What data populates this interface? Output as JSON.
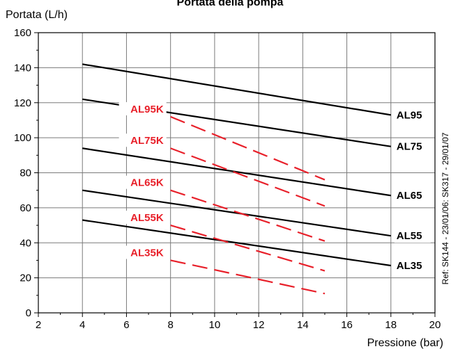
{
  "chart_data": {
    "type": "line",
    "title": "Portata della pompa",
    "ylabel": "Portata (L/h)",
    "xlabel": "Pressione  (bar)",
    "xlim": [
      2,
      20
    ],
    "ylim": [
      0,
      160
    ],
    "x_ticks": [
      2,
      4,
      6,
      8,
      10,
      12,
      14,
      16,
      18,
      20
    ],
    "y_ticks": [
      0,
      20,
      40,
      60,
      80,
      100,
      120,
      140,
      160
    ],
    "grid": true,
    "reference_note": "Ref: SK144 - 23/01/06: SK317 - 29/01/07",
    "dashed_color": "#e8202a",
    "solid_color": "#000000",
    "series": [
      {
        "name": "AL95",
        "style": "solid",
        "x": [
          4,
          18
        ],
        "y": [
          142,
          113
        ]
      },
      {
        "name": "AL75",
        "style": "solid",
        "x": [
          4,
          18
        ],
        "y": [
          122,
          95
        ]
      },
      {
        "name": "AL65",
        "style": "solid",
        "x": [
          4,
          18
        ],
        "y": [
          94,
          67
        ]
      },
      {
        "name": "AL55",
        "style": "solid",
        "x": [
          4,
          18
        ],
        "y": [
          70,
          44
        ]
      },
      {
        "name": "AL35",
        "style": "solid",
        "x": [
          4,
          18
        ],
        "y": [
          53,
          27
        ]
      },
      {
        "name": "AL95K",
        "style": "dashed",
        "x": [
          8,
          15
        ],
        "y": [
          112,
          76
        ]
      },
      {
        "name": "AL75K",
        "style": "dashed",
        "x": [
          8,
          15
        ],
        "y": [
          94,
          61
        ]
      },
      {
        "name": "AL65K",
        "style": "dashed",
        "x": [
          8,
          15
        ],
        "y": [
          70,
          41
        ]
      },
      {
        "name": "AL55K",
        "style": "dashed",
        "x": [
          8,
          15
        ],
        "y": [
          50,
          24
        ]
      },
      {
        "name": "AL35K",
        "style": "dashed",
        "x": [
          8,
          15
        ],
        "y": [
          30,
          11
        ]
      }
    ]
  }
}
